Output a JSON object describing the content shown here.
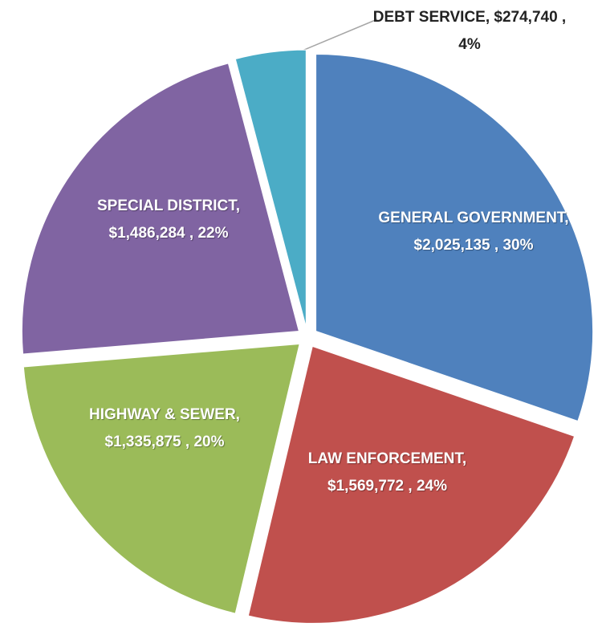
{
  "chart_data": {
    "type": "pie",
    "categories": [
      "GENERAL GOVERNMENT,",
      "LAW ENFORCEMENT,",
      "HIGHWAY & SEWER,",
      "SPECIAL DISTRICT,",
      "DEBT SERVICE,"
    ],
    "values": [
      2025135,
      1569772,
      1335875,
      1486284,
      274740
    ],
    "value_labels": [
      "$2,025,135 ,",
      "$1,569,772 ,",
      "$1,335,875 ,",
      "$1,486,284 ,",
      "$274,740 ,"
    ],
    "percents": [
      30,
      24,
      20,
      22,
      4
    ],
    "percent_labels": [
      "30%",
      "24%",
      "20%",
      "22%",
      "4%"
    ],
    "colors": [
      "#4f81bd",
      "#c0504d",
      "#9bbb59",
      "#8064a2",
      "#4bacc6"
    ]
  }
}
